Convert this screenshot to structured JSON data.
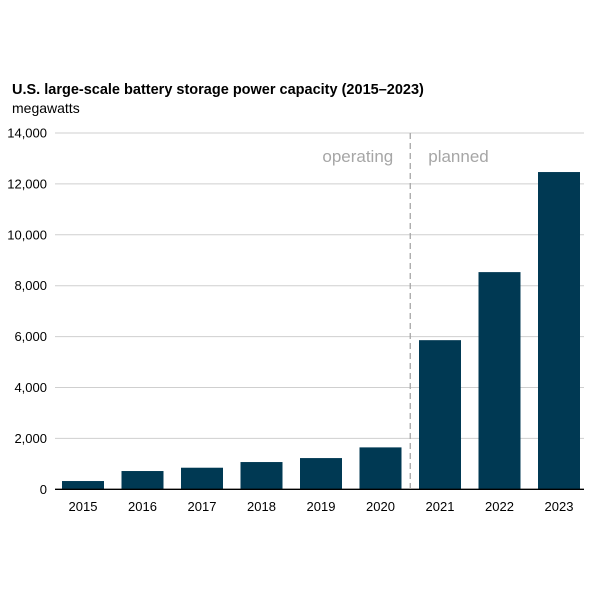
{
  "chart_data": {
    "type": "bar",
    "title": "U.S. large-scale battery storage power capacity (2015–2023)",
    "subtitle": "megawatts",
    "xlabel": "",
    "ylabel": "megawatts",
    "categories": [
      "2015",
      "2016",
      "2017",
      "2018",
      "2019",
      "2020",
      "2021",
      "2022",
      "2023"
    ],
    "values": [
      325,
      718,
      848,
      1071,
      1227,
      1647,
      5860,
      8534,
      12466
    ],
    "ylim": [
      0,
      14000
    ],
    "yticks": [
      0,
      2000,
      4000,
      6000,
      8000,
      10000,
      12000,
      14000
    ],
    "ytick_labels": [
      "0",
      "2,000",
      "4,000",
      "6,000",
      "8,000",
      "10,000",
      "12,000",
      "14,000"
    ],
    "grid": true,
    "bar_color": "#003953",
    "annotations": [
      {
        "text": "operating",
        "position": "left of divider"
      },
      {
        "text": "planned",
        "position": "right of divider"
      }
    ],
    "divider_between": [
      "2020",
      "2021"
    ]
  }
}
